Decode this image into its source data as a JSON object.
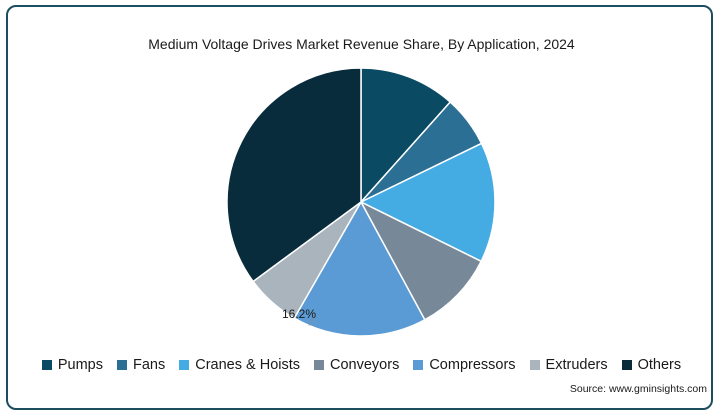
{
  "chart_data": {
    "type": "pie",
    "title": "Medium Voltage Drives Market Revenue Share, By Application, 2024",
    "categories": [
      "Pumps",
      "Fans",
      "Cranes & Hoists",
      "Conveyors",
      "Compressors",
      "Extruders",
      "Others"
    ],
    "values": [
      11.6,
      6.2,
      14.5,
      9.8,
      16.2,
      6.6,
      35.1
    ],
    "colors": [
      "#0a4a63",
      "#2c6f95",
      "#45ace3",
      "#778899",
      "#5b9bd5",
      "#a9b4bd",
      "#082c3c"
    ],
    "data_labels": [
      {
        "category": "Compressors",
        "text": "16.2%"
      }
    ],
    "legend_position": "bottom",
    "source": "Source: www.gminsights.com"
  }
}
